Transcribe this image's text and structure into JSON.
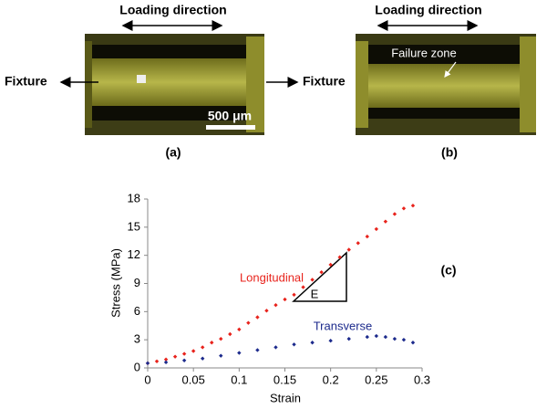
{
  "panels": [
    {
      "label": "(a)",
      "heading": "Loading direction",
      "left_label": "Fixture",
      "right_label": "Fixture",
      "scale_bar": "500 μm"
    },
    {
      "label": "(b)",
      "heading": "Loading direction",
      "annotation": "Failure zone"
    }
  ],
  "chart_data": {
    "type": "scatter",
    "panel_label": "(c)",
    "x_label": "Strain",
    "y_label": "Stress (MPa)",
    "annotation": "E",
    "xlim": [
      0,
      0.3
    ],
    "xticks": [
      0,
      0.05,
      0.1,
      0.15,
      0.2,
      0.25,
      0.3
    ],
    "ylim": [
      0,
      18
    ],
    "yticks": [
      0,
      3,
      6,
      9,
      12,
      15,
      18
    ],
    "grid": false,
    "series": [
      {
        "name": "Longitudinal",
        "color": "#e8231c",
        "x": [
          0,
          0.01,
          0.02,
          0.03,
          0.04,
          0.05,
          0.06,
          0.07,
          0.08,
          0.09,
          0.1,
          0.11,
          0.12,
          0.13,
          0.14,
          0.15,
          0.16,
          0.17,
          0.18,
          0.19,
          0.2,
          0.21,
          0.22,
          0.23,
          0.24,
          0.25,
          0.26,
          0.27,
          0.28,
          0.29
        ],
        "values": [
          0.5,
          0.7,
          0.9,
          1.2,
          1.5,
          1.8,
          2.2,
          2.7,
          3.1,
          3.6,
          4.1,
          4.8,
          5.4,
          6.1,
          6.7,
          7.3,
          7.8,
          8.6,
          9.4,
          10.2,
          11,
          11.8,
          12.6,
          13.3,
          14,
          14.8,
          15.6,
          16.4,
          17,
          17.3
        ]
      },
      {
        "name": "Transverse",
        "color": "#1c2a8c",
        "x": [
          0,
          0.02,
          0.04,
          0.06,
          0.08,
          0.1,
          0.12,
          0.14,
          0.16,
          0.18,
          0.2,
          0.22,
          0.24,
          0.25,
          0.26,
          0.27,
          0.28,
          0.29
        ],
        "values": [
          0.5,
          0.6,
          0.8,
          1,
          1.3,
          1.6,
          1.9,
          2.2,
          2.5,
          2.7,
          2.9,
          3.1,
          3.3,
          3.4,
          3.3,
          3.1,
          3,
          2.7
        ]
      }
    ]
  }
}
